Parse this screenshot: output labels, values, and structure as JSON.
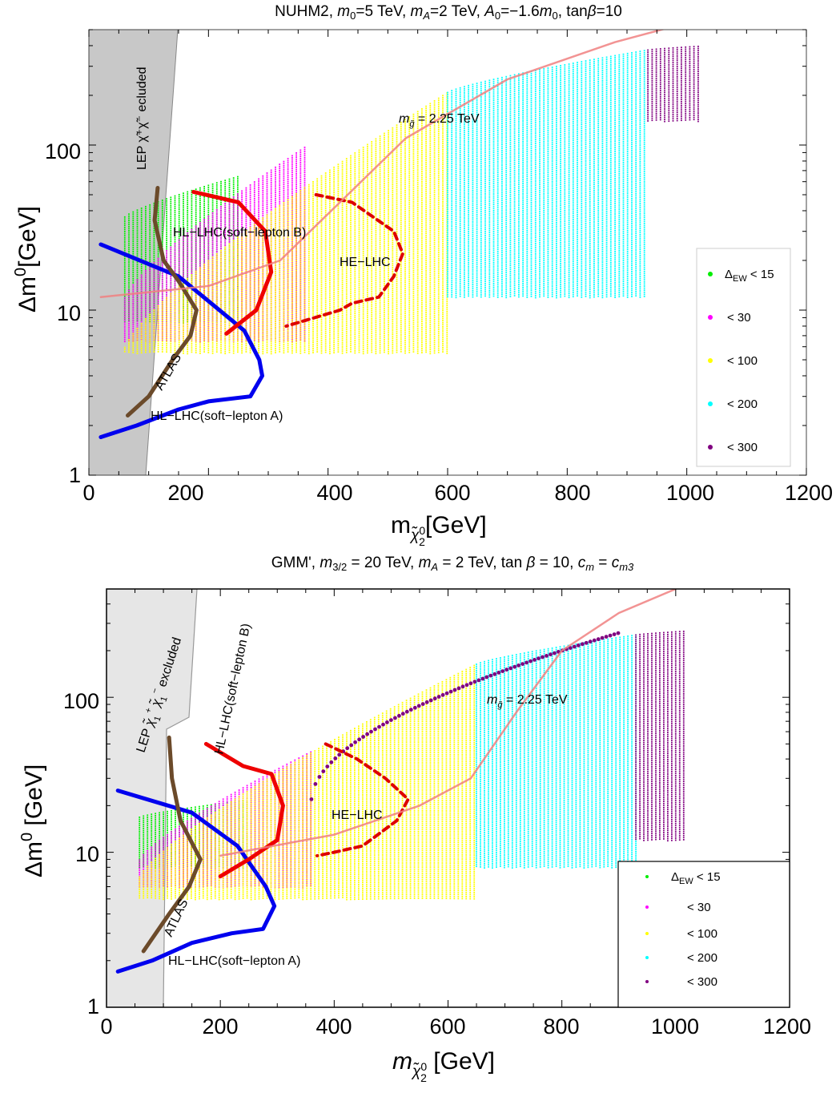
{
  "colors": {
    "dew15": "#00ee00",
    "dew30": "#ff00ff",
    "dew100": "#ffff00",
    "dew200": "#00ffff",
    "dew300": "#800080",
    "lep_region_top": "#c8c8c8",
    "lep_region_bottom": "#e6e6e6",
    "hl_soft_lepton_a": "#0000ee",
    "hl_soft_lepton_b": "#ee0000",
    "atlas": "#6b4a2a",
    "he_lhc": "#dd0000",
    "gluino_contour": "#f08080"
  },
  "chart_data": [
    {
      "type": "scatter",
      "title": "NUHM2, m0=5 TeV, mA=2 TeV, A0=−1.6m0, tanβ=10",
      "xlabel": "m_χ̃2⁰[GeV]",
      "ylabel": "Δm⁰[GeV]",
      "x_scale": "linear",
      "y_scale": "log",
      "xlim": [
        0,
        1200
      ],
      "ylim": [
        1,
        500
      ],
      "x_ticks": [
        "0",
        "200",
        "400",
        "600",
        "800",
        "1000",
        "1200"
      ],
      "y_ticks": [
        "1",
        "10",
        "100"
      ],
      "legend": {
        "position": "right",
        "entries": [
          "Δ_EW < 15",
          "< 30",
          "< 100",
          "< 200",
          "< 300"
        ]
      },
      "region": {
        "label": "LEP χ̃⁺χ̃⁻ ecluded",
        "x_bottom": 97,
        "x_top": 155
      },
      "scan_bands": [
        {
          "name": "Δ_EW < 15",
          "x_range": [
            60,
            250
          ],
          "y_top_lo": 37,
          "y_top_hi": 65,
          "y_bottom": 8.5
        },
        {
          "name": "< 30",
          "x_range": [
            60,
            365
          ],
          "y_top_lo": 12,
          "y_top_hi": 100,
          "y_bottom": 6.5
        },
        {
          "name": "< 100",
          "x_range": [
            60,
            600
          ],
          "y_top_lo": 6,
          "y_top_hi": 210,
          "y_bottom": 5.5
        },
        {
          "name": "< 200",
          "x_range": [
            600,
            935
          ],
          "y_top_lo": 210,
          "y_top_hi": 380,
          "y_bottom": 12
        },
        {
          "name": "< 300",
          "x_range": [
            935,
            1020
          ],
          "y_top_lo": 380,
          "y_top_hi": 400,
          "y_bottom": 140
        }
      ],
      "lines": [
        {
          "name": "HL−LHC(soft−lepton A)",
          "points": [
            [
              20,
              25
            ],
            [
              150,
              16
            ],
            [
              260,
              7.5
            ],
            [
              285,
              5
            ],
            [
              290,
              4
            ],
            [
              270,
              3
            ],
            [
              200,
              2.8
            ],
            [
              150,
              2.5
            ],
            [
              80,
              2
            ],
            [
              20,
              1.7
            ]
          ]
        },
        {
          "name": "HL−LHC(soft−lepton B)",
          "points": [
            [
              175,
              52
            ],
            [
              250,
              45
            ],
            [
              295,
              30
            ],
            [
              305,
              17
            ],
            [
              280,
              10
            ],
            [
              230,
              7.2
            ]
          ]
        },
        {
          "name": "ATLAS",
          "points": [
            [
              115,
              55
            ],
            [
              110,
              35
            ],
            [
              125,
              20
            ],
            [
              150,
              15
            ],
            [
              180,
              10
            ],
            [
              170,
              7
            ],
            [
              140,
              5
            ],
            [
              100,
              3
            ],
            [
              65,
              2.3
            ]
          ]
        },
        {
          "name": "HE−LHC",
          "points": [
            [
              380,
              50
            ],
            [
              440,
              45
            ],
            [
              510,
              30
            ],
            [
              525,
              22
            ],
            [
              510,
              16
            ],
            [
              485,
              12
            ],
            [
              440,
              11
            ],
            [
              420,
              10
            ],
            [
              330,
              8
            ]
          ]
        },
        {
          "name": "m_g̃ = 2.25 TeV",
          "points": [
            [
              20,
              12
            ],
            [
              200,
              14
            ],
            [
              320,
              20
            ],
            [
              420,
              45
            ],
            [
              530,
              110
            ],
            [
              700,
              250
            ],
            [
              880,
              420
            ],
            [
              1000,
              550
            ]
          ]
        }
      ],
      "annotations": [
        "HL−LHC(soft−lepton B)",
        "HE−LHC",
        "ATLAS",
        "HL−LHC(soft−lepton A)",
        "m_g̃ = 2.25 TeV"
      ]
    },
    {
      "type": "scatter",
      "title": "GMM', m3/2 = 20 TeV, mA = 2 TeV, tan β = 10, cm = cm3",
      "xlabel": "m_χ̃2⁰ [GeV]",
      "ylabel": "Δm⁰ [GeV]",
      "x_scale": "linear",
      "y_scale": "log",
      "xlim": [
        0,
        1200
      ],
      "ylim": [
        1,
        500
      ],
      "x_ticks": [
        "0",
        "200",
        "400",
        "600",
        "800",
        "1000",
        "1200"
      ],
      "y_ticks": [
        "1",
        "10",
        "100"
      ],
      "legend": {
        "position": "bottom-right",
        "entries": [
          "Δ_EW < 15",
          "< 30",
          "< 100",
          "< 200",
          "< 300"
        ]
      },
      "region": {
        "label": "LEP χ̃1⁺χ̃1⁻ excluded",
        "x_bottom": 100,
        "x_top": 155
      },
      "scan_bands": [
        {
          "name": "Δ_EW < 15",
          "x_range": [
            58,
            250
          ],
          "y_top_lo": 17,
          "y_top_hi": 22,
          "y_bottom": 8
        },
        {
          "name": "< 30",
          "x_range": [
            58,
            360
          ],
          "y_top_lo": 9,
          "y_top_hi": 45,
          "y_bottom": 6
        },
        {
          "name": "< 100",
          "x_range": [
            58,
            650
          ],
          "y_top_lo": 7,
          "y_top_hi": 165,
          "y_bottom": 5
        },
        {
          "name": "< 200",
          "x_range": [
            650,
            930
          ],
          "y_top_lo": 165,
          "y_top_hi": 255,
          "y_bottom": 8
        },
        {
          "name": "< 300",
          "x_range": [
            930,
            1020
          ],
          "y_top_lo": 255,
          "y_top_hi": 270,
          "y_bottom": 12
        }
      ],
      "lines": [
        {
          "name": "HL−LHC(soft−lepton A)",
          "points": [
            [
              20,
              25
            ],
            [
              150,
              18
            ],
            [
              230,
              11
            ],
            [
              280,
              6
            ],
            [
              295,
              4.5
            ],
            [
              275,
              3.2
            ],
            [
              220,
              3
            ],
            [
              150,
              2.6
            ],
            [
              80,
              2
            ],
            [
              20,
              1.7
            ]
          ]
        },
        {
          "name": "HL−LHC(soft−lepton B)",
          "points": [
            [
              175,
              50
            ],
            [
              240,
              36
            ],
            [
              290,
              32
            ],
            [
              310,
              20
            ],
            [
              300,
              12
            ],
            [
              250,
              9
            ],
            [
              200,
              7
            ]
          ]
        },
        {
          "name": "ATLAS",
          "points": [
            [
              110,
              55
            ],
            [
              115,
              30
            ],
            [
              130,
              16
            ],
            [
              165,
              9
            ],
            [
              145,
              6
            ],
            [
              110,
              4
            ],
            [
              65,
              2.3
            ]
          ]
        },
        {
          "name": "HE−LHC",
          "points": [
            [
              385,
              50
            ],
            [
              440,
              40
            ],
            [
              490,
              30
            ],
            [
              530,
              22
            ],
            [
              510,
              16
            ],
            [
              450,
              11
            ],
            [
              400,
              10
            ],
            [
              370,
              9.5
            ]
          ]
        },
        {
          "name": "m_g̃ = 2.25 TeV",
          "points": [
            [
              200,
              9.5
            ],
            [
              400,
              13
            ],
            [
              550,
              20
            ],
            [
              640,
              30
            ],
            [
              720,
              80
            ],
            [
              800,
              200
            ],
            [
              900,
              350
            ],
            [
              1000,
              500
            ]
          ]
        }
      ],
      "annotations": [
        "HL−LHC(soft−lepton B)",
        "HE−LHC",
        "ATLAS",
        "HL−LHC(soft−lepton A)",
        "m_g̃ = 2.25 TeV"
      ]
    }
  ]
}
